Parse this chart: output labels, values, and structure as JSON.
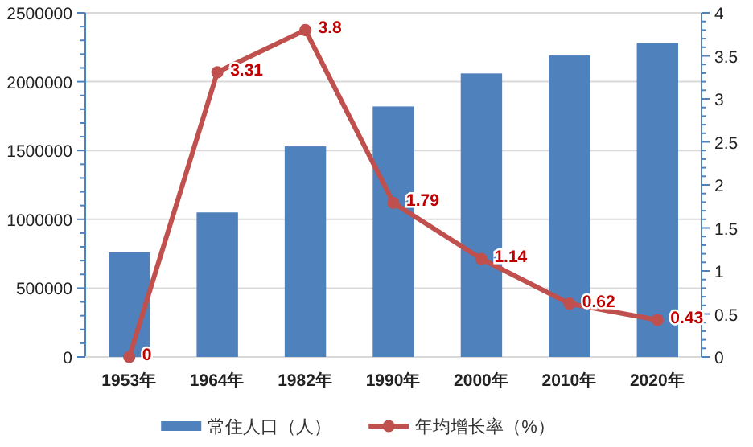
{
  "chart_data": {
    "type": "bar",
    "categories": [
      "1953年",
      "1964年",
      "1982年",
      "1990年",
      "2000年",
      "2010年",
      "2020年"
    ],
    "series": [
      {
        "name": "常住人口（人）",
        "color": "#4f81bd",
        "values": [
          760000,
          1050000,
          1530000,
          1820000,
          2060000,
          2190000,
          2280000
        ]
      },
      {
        "name": "年均增长率（%）",
        "type": "line",
        "axis": "y2",
        "color": "#c0504d",
        "marker": "circle",
        "values": [
          0,
          3.31,
          3.8,
          1.79,
          1.14,
          0.62,
          0.43
        ],
        "value_labels": [
          "0",
          "3.31",
          "3.8",
          "1.79",
          "1.14",
          "0.62",
          "0.43"
        ]
      }
    ],
    "ylim": [
      0,
      2500000
    ],
    "yticks": [
      0,
      500000,
      1000000,
      1500000,
      2000000,
      2500000
    ],
    "y2lim": [
      0,
      4
    ],
    "y2ticks": [
      0,
      0.5,
      1,
      1.5,
      2,
      2.5,
      3,
      3.5,
      4
    ],
    "grid": "y",
    "legend": "bottom"
  }
}
